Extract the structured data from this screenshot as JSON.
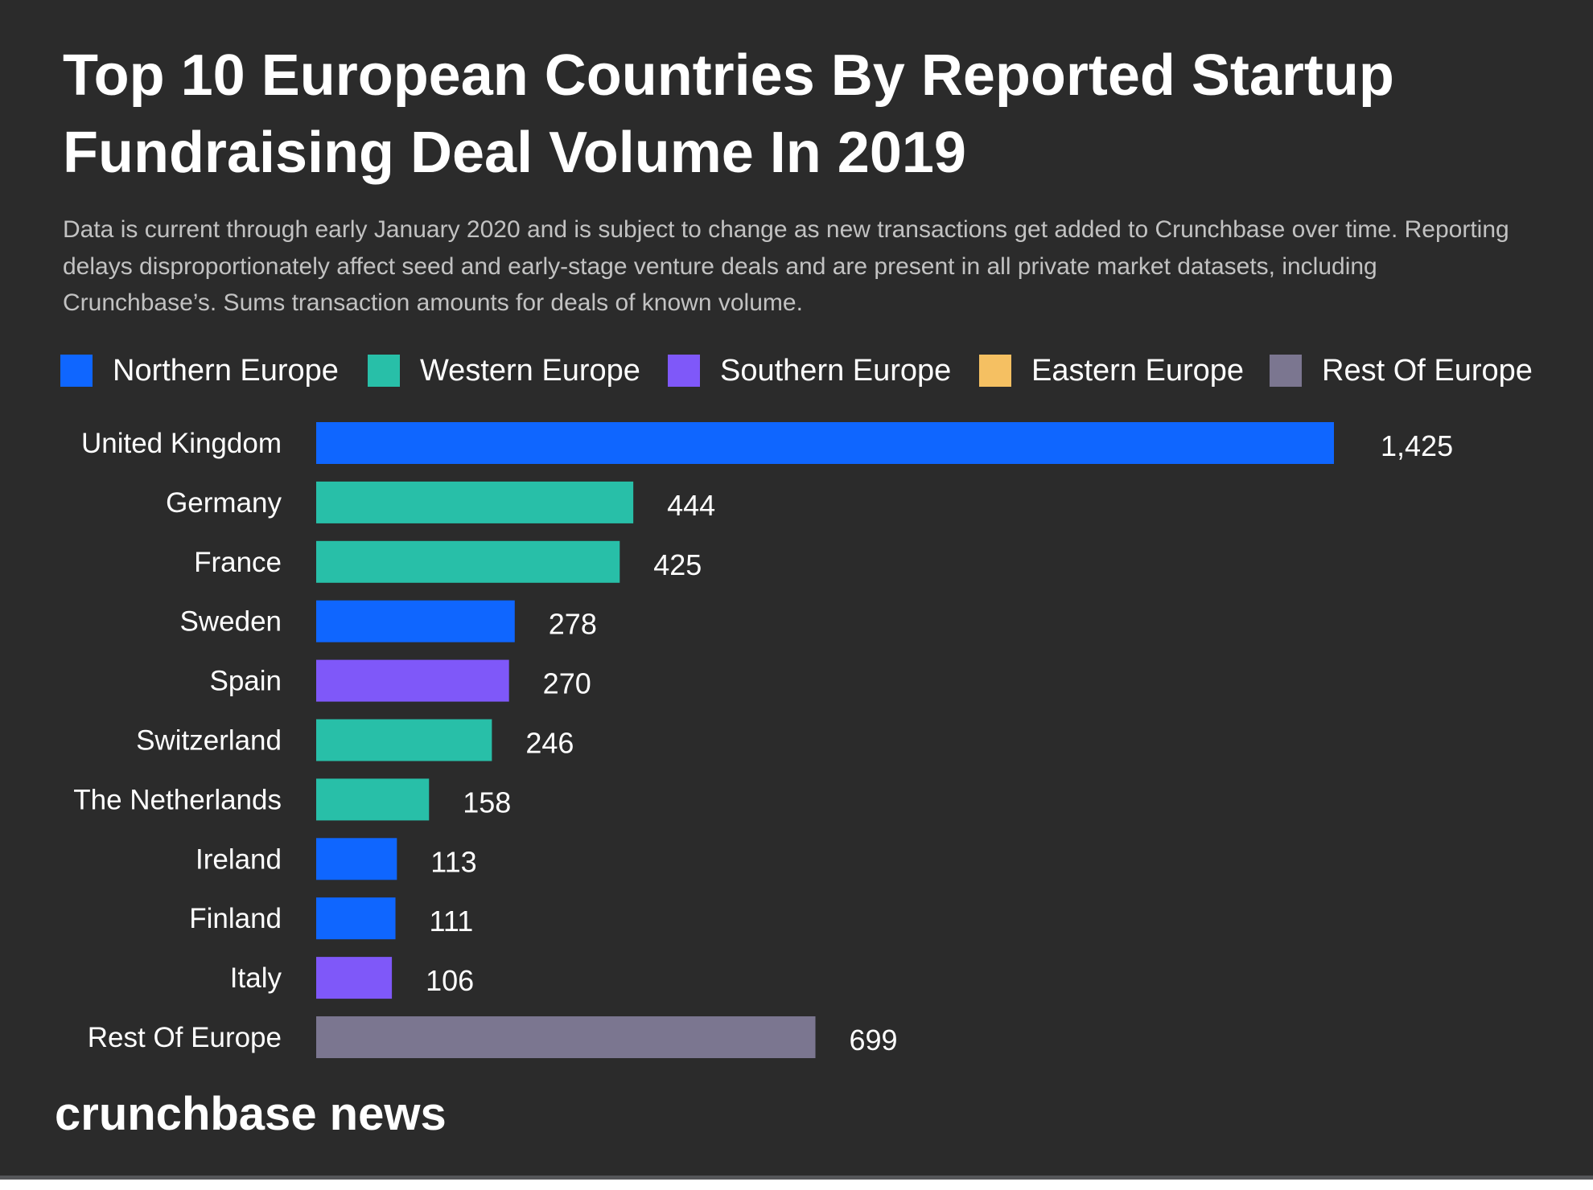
{
  "title": "Top 10 European Countries By Reported Startup Fundraising Deal Volume In 2019",
  "subtitle": "Data is current through early January 2020 and is subject to change as new transactions get added to Crunchbase over time. Reporting delays disproportionately affect seed and early-stage venture deals and are present in all private market datasets, including Crunchbase’s. Sums transaction amounts for deals of known volume.",
  "logo": "crunchbase news",
  "legend": [
    {
      "label": "Northern Europe",
      "color": "#0f66ff"
    },
    {
      "label": "Western Europe",
      "color": "#28bfa8"
    },
    {
      "label": "Southern Europe",
      "color": "#7f58f9"
    },
    {
      "label": "Eastern Europe",
      "color": "#f5c062"
    },
    {
      "label": "Rest Of Europe",
      "color": "#7b7690"
    }
  ],
  "chart_data": {
    "type": "bar",
    "orientation": "horizontal",
    "title": "Top 10 European Countries By Reported Startup Fundraising Deal Volume In 2019",
    "xlabel": "",
    "ylabel": "",
    "xlim": [
      0,
      1425
    ],
    "grid": false,
    "legend_position": "top",
    "categories": [
      "United Kingdom",
      "Germany",
      "France",
      "Sweden",
      "Spain",
      "Switzerland",
      "The Netherlands",
      "Ireland",
      "Finland",
      "Italy",
      "Rest Of Europe"
    ],
    "values": [
      1425,
      444,
      425,
      278,
      270,
      246,
      158,
      113,
      111,
      106,
      699
    ],
    "value_labels": [
      "1,425",
      "444",
      "425",
      "278",
      "270",
      "246",
      "158",
      "113",
      "111",
      "106",
      "699"
    ],
    "regions": [
      "Northern Europe",
      "Western Europe",
      "Western Europe",
      "Northern Europe",
      "Southern Europe",
      "Western Europe",
      "Western Europe",
      "Northern Europe",
      "Northern Europe",
      "Southern Europe",
      "Rest Of Europe"
    ]
  }
}
